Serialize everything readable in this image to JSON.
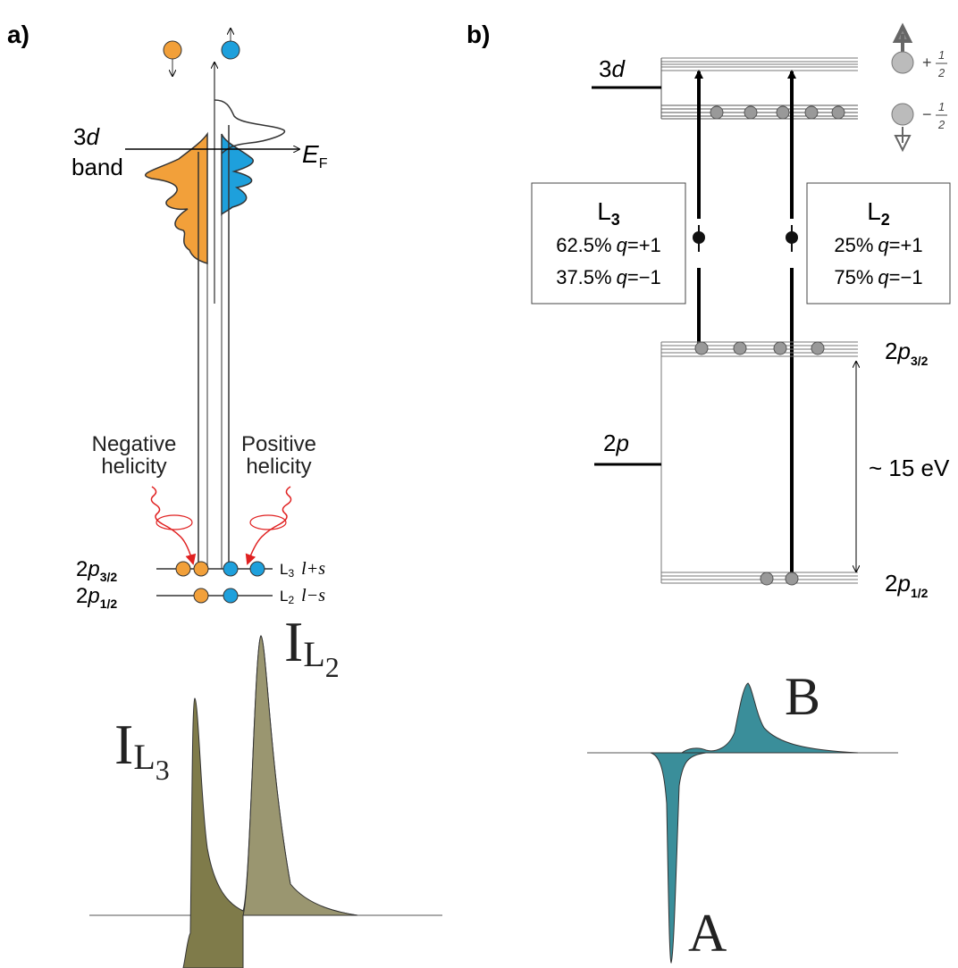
{
  "panel_a": {
    "label": "a)",
    "band_number": "3",
    "band_orbital": "d",
    "band_word": "band",
    "fermi_symbol": "E",
    "fermi_sub": "F",
    "negative_helicity": [
      "Negative",
      "helicity"
    ],
    "positive_helicity": [
      "Positive",
      "helicity"
    ],
    "levels": [
      {
        "prefix": "2",
        "orbital": "p",
        "sub": "3/2",
        "edge": "L",
        "edge_sub": "3",
        "rule": "l+s"
      },
      {
        "prefix": "2",
        "orbital": "p",
        "sub": "1/2",
        "edge": "L",
        "edge_sub": "2",
        "rule": "l−s"
      }
    ]
  },
  "panel_b": {
    "label": "b)",
    "d_number": "3",
    "d_orbital": "d",
    "spin_up": {
      "sign": "+",
      "numerator": "1",
      "denominator": "2"
    },
    "spin_down": {
      "sign": "−",
      "numerator": "1",
      "denominator": "2"
    },
    "edges": [
      {
        "edge": "L",
        "sub": "3",
        "lines": [
          {
            "percent": "62.5%",
            "q": "q",
            "value": "=+1"
          },
          {
            "percent": "37.5%",
            "q": "q",
            "value": "=−1"
          }
        ]
      },
      {
        "edge": "L",
        "sub": "2",
        "lines": [
          {
            "percent": "25%",
            "q": "q",
            "value": "=+1"
          },
          {
            "percent": "75%",
            "q": "q",
            "value": "=−1"
          }
        ]
      }
    ],
    "p_number": "2",
    "p_orbital": "p",
    "upper_level": {
      "prefix": "2",
      "orbital": "p",
      "sub": "3/2"
    },
    "lower_level": {
      "prefix": "2",
      "orbital": "p",
      "sub": "1/2"
    },
    "splitting": "~ 15 eV"
  },
  "panel_c": {
    "peak1": {
      "main": "I",
      "sub": "L",
      "subsub": "3"
    },
    "peak2": {
      "main": "I",
      "sub": "L",
      "subsub": "2"
    }
  },
  "panel_d": {
    "upper": "B",
    "lower": "A"
  }
}
